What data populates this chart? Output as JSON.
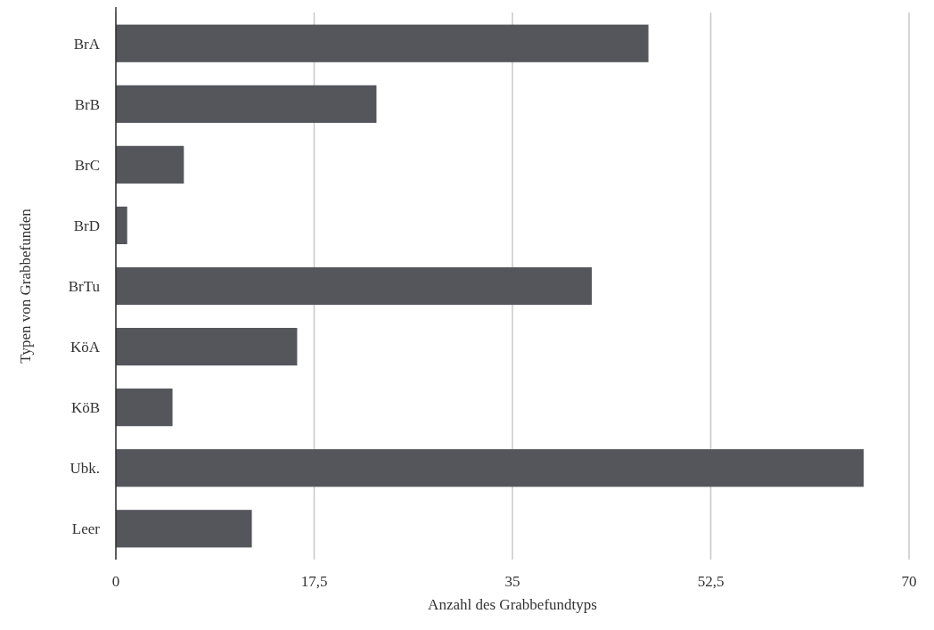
{
  "chart_data": {
    "type": "bar",
    "orientation": "horizontal",
    "xlabel": "Anzahl des Grabbefundtyps",
    "ylabel": "Typen von Grabbefunden",
    "categories": [
      "BrA",
      "BrB",
      "BrC",
      "BrD",
      "BrTu",
      "KöA",
      "KöB",
      "Ubk.",
      "Leer"
    ],
    "values": [
      47,
      23,
      6,
      1,
      42,
      16,
      5,
      66,
      12
    ],
    "color": "#54565c",
    "xlim": [
      0,
      70
    ],
    "xticks": [
      0,
      {
        "value": 17.5,
        "label": "17,5"
      },
      35,
      {
        "value": 52.5,
        "label": "52,5"
      },
      70
    ],
    "grid": "x"
  }
}
